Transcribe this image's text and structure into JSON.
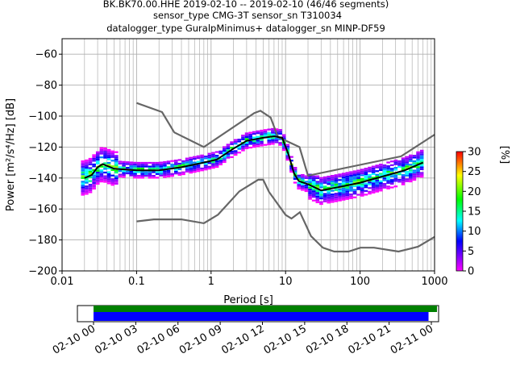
{
  "title_lines": [
    "BK.BK70.00.HHE   2019-02-10 -- 2019-02-10  (46/46 segments)",
    "sensor_type CMG-3T sensor_sn T310034",
    "datalogger_type GuralpMinimus+ datalogger_sn MINP-DF59"
  ],
  "chart_data": [
    {
      "type": "heatmap",
      "xlabel": "Period [s]",
      "ylabel": "Power [m²/s⁴/Hz] [dB]",
      "x_scale": "log",
      "xlim": [
        0.01,
        1000
      ],
      "ylim": [
        -200,
        -50
      ],
      "x_ticks": [
        0.01,
        0.1,
        1,
        10,
        100,
        1000
      ],
      "x_tick_labels": [
        "0.01",
        "0.1",
        "1",
        "10",
        "100",
        "1000"
      ],
      "y_ticks": [
        -200,
        -180,
        -160,
        -140,
        -120,
        -100,
        -80,
        -60
      ],
      "y_tick_labels": [
        "−200",
        "−180",
        "−160",
        "−140",
        "−120",
        "−100",
        "−80",
        "−60"
      ],
      "grid": true,
      "series": [
        {
          "name": "NHNM",
          "color": "#666666",
          "x": [
            0.1,
            0.22,
            0.32,
            0.8,
            3.8,
            4.6,
            6.3,
            7.9,
            15.4,
            20,
            354.8,
            1000
          ],
          "y": [
            -91.5,
            -97.4,
            -110.5,
            -120,
            -98,
            -96.5,
            -101,
            -113.5,
            -120,
            -138.5,
            -126,
            -112
          ]
        },
        {
          "name": "NLNM",
          "color": "#666666",
          "x": [
            0.1,
            0.17,
            0.4,
            0.8,
            1.24,
            2.4,
            4.3,
            5.0,
            6.0,
            10.0,
            12.0,
            15.6,
            21.9,
            31.6,
            45,
            70,
            101,
            154,
            328,
            600,
            1000
          ],
          "y": [
            -168,
            -166.7,
            -166.7,
            -169.2,
            -163.7,
            -148.6,
            -141.1,
            -141.1,
            -149,
            -163.8,
            -166.2,
            -162.1,
            -177.5,
            -185,
            -187.5,
            -187.5,
            -185,
            -185,
            -187.5,
            -184.4,
            -178
          ]
        },
        {
          "name": "mean",
          "color": "#000000",
          "x": [
            0.02,
            0.025,
            0.03,
            0.035,
            0.05,
            0.1,
            0.2,
            0.4,
            0.8,
            1.2,
            2,
            3,
            5,
            7,
            9,
            11,
            13,
            15,
            20,
            30,
            50,
            100,
            200,
            400,
            700
          ],
          "y": [
            -140,
            -138,
            -133,
            -131,
            -134,
            -135,
            -135,
            -133,
            -130,
            -128,
            -121,
            -116,
            -114,
            -113,
            -114,
            -125,
            -137,
            -142,
            -144,
            -148,
            -146,
            -143,
            -139,
            -135,
            -130
          ]
        }
      ],
      "density_color_range": [
        0,
        30
      ],
      "colorbar_label": "[%]",
      "colorbar_ticks": [
        0,
        5,
        10,
        15,
        20,
        25,
        30
      ]
    },
    {
      "type": "timeline",
      "x_tick_labels": [
        "02-10 00",
        "02-10 03",
        "02-10 06",
        "02-10 09",
        "02-10 12",
        "02-10 15",
        "02-10 18",
        "02-10 21",
        "02-11 00"
      ],
      "bars": [
        {
          "color": "#008000",
          "start_hour": 0,
          "end_hour": 24.4
        },
        {
          "color": "#0000ff",
          "start_hour": 0,
          "end_hour": 23.8
        }
      ]
    }
  ]
}
